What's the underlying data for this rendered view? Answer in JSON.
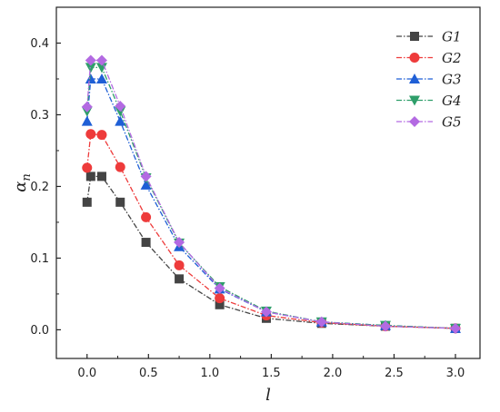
{
  "chart_data": {
    "type": "line",
    "xlabel": "l",
    "ylabel_main": "α",
    "ylabel_sub": "n",
    "xlim": [
      -0.25,
      3.2
    ],
    "ylim": [
      -0.04,
      0.45
    ],
    "xticks": [
      0.0,
      0.5,
      1.0,
      1.5,
      2.0,
      2.5,
      3.0
    ],
    "xtick_labels": [
      "0.0",
      "0.5",
      "1.0",
      "1.5",
      "2.0",
      "2.5",
      "3.0"
    ],
    "yticks": [
      0.0,
      0.1,
      0.2,
      0.3,
      0.4
    ],
    "ytick_labels": [
      "0.0",
      "0.1",
      "0.2",
      "0.3",
      "0.4"
    ],
    "grid": false,
    "legend_position": "top-right",
    "x": [
      0.0,
      0.03,
      0.12,
      0.27,
      0.48,
      0.75,
      1.08,
      1.46,
      1.91,
      2.43,
      3.0
    ],
    "series": [
      {
        "name": "G1",
        "color": "#444444",
        "marker": "square",
        "values": [
          0.178,
          0.214,
          0.214,
          0.178,
          0.122,
          0.071,
          0.035,
          0.016,
          0.009,
          0.005,
          0.002
        ]
      },
      {
        "name": "G2",
        "color": "#ee3b3b",
        "marker": "circle",
        "values": [
          0.226,
          0.273,
          0.272,
          0.227,
          0.157,
          0.09,
          0.044,
          0.02,
          0.01,
          0.005,
          0.002
        ]
      },
      {
        "name": "G3",
        "color": "#1f5fd6",
        "marker": "triangle-up",
        "values": [
          0.291,
          0.35,
          0.35,
          0.291,
          0.202,
          0.116,
          0.057,
          0.025,
          0.011,
          0.006,
          0.002
        ]
      },
      {
        "name": "G4",
        "color": "#2e9e6a",
        "marker": "triangle-down",
        "values": [
          0.305,
          0.366,
          0.366,
          0.305,
          0.212,
          0.121,
          0.06,
          0.026,
          0.011,
          0.006,
          0.002
        ]
      },
      {
        "name": "G5",
        "color": "#b36ae2",
        "marker": "diamond",
        "values": [
          0.311,
          0.376,
          0.376,
          0.312,
          0.214,
          0.122,
          0.058,
          0.025,
          0.011,
          0.005,
          0.002
        ]
      }
    ]
  }
}
